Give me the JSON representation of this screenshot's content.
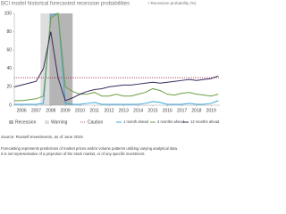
{
  "chart_data": {
    "type": "line",
    "title": "BCI model historical forecasted recession probabilities",
    "subtitle": "/ Recession probability (%)",
    "x": [
      2005.5,
      2006,
      2006.5,
      2007,
      2007.5,
      2008,
      2008.5,
      2009,
      2009.5,
      2010,
      2010.5,
      2011,
      2011.5,
      2012,
      2012.5,
      2013,
      2013.5,
      2014,
      2014.5,
      2015,
      2015.5,
      2016,
      2016.5,
      2017,
      2017.5,
      2018,
      2018.5,
      2019,
      2019.5
    ],
    "xlim": [
      2005.5,
      2019.6
    ],
    "xticks": [
      2006,
      2007,
      2008,
      2009,
      2010,
      2011,
      2012,
      2013,
      2014,
      2015,
      2016,
      2017,
      2018,
      2019
    ],
    "ylim": [
      0,
      100
    ],
    "yticks": [
      0,
      20,
      40,
      60,
      80,
      100
    ],
    "bands": [
      {
        "name": "Recession",
        "color": "#b5b5b5",
        "x": [
          2007.9,
          2009.5
        ]
      },
      {
        "name": "Warning",
        "color": "#dedede",
        "x": [
          2007.3,
          2007.9
        ]
      }
    ],
    "threshold": {
      "name": "Caution",
      "color": "#9e1b32",
      "value": 30
    },
    "series": [
      {
        "name": "1 month ahead",
        "color": "#3aa6dd",
        "values": [
          1,
          1,
          1,
          1,
          2,
          98,
          100,
          2,
          1,
          1,
          2,
          3,
          1,
          1,
          1,
          1,
          1,
          1,
          2,
          4,
          3,
          1,
          1,
          1,
          2,
          1,
          1,
          2,
          5
        ]
      },
      {
        "name": "3 months ahead",
        "color": "#6e9e45",
        "values": [
          5,
          5,
          6,
          7,
          10,
          95,
          100,
          20,
          15,
          12,
          12,
          14,
          10,
          10,
          12,
          10,
          10,
          12,
          14,
          18,
          16,
          12,
          11,
          13,
          14,
          12,
          11,
          10,
          12
        ]
      },
      {
        "name": "12 months ahead",
        "color": "#3b2a5e",
        "values": [
          20,
          22,
          24,
          26,
          40,
          80,
          30,
          5,
          8,
          12,
          15,
          17,
          18,
          20,
          21,
          22,
          22,
          23,
          24,
          25,
          24,
          25,
          26,
          27,
          28,
          27,
          28,
          29,
          32
        ]
      }
    ],
    "source": "Source: Russell Investments, as of June 2019.",
    "notes": [
      "Forecasting represents predictions of market prices and/or volume patterns utilizing varying analytical data.",
      "It is not representative of a projection of the stock market, or of any specific investment."
    ]
  }
}
